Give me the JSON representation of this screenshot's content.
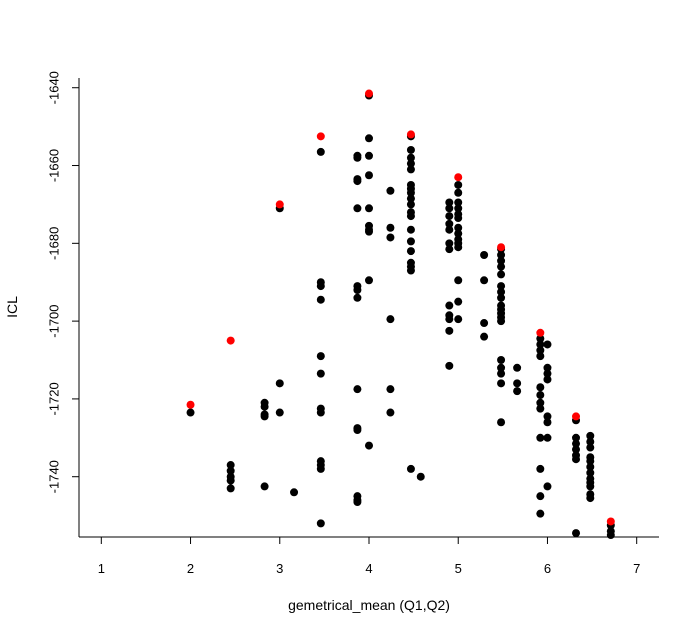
{
  "chart_data": {
    "type": "scatter",
    "title": "",
    "xlabel": "gemetrical_mean (Q1,Q2)",
    "ylabel": "ICL",
    "xlim": [
      0.75,
      7.25
    ],
    "ylim": [
      -1755.5,
      -1637.5
    ],
    "x_ticks": [
      1,
      2,
      3,
      4,
      5,
      6,
      7
    ],
    "y_ticks": [
      -1740,
      -1720,
      -1700,
      -1680,
      -1660,
      -1640
    ],
    "grid": false,
    "series": [
      {
        "color": "#000000",
        "points": [
          [
            2.0,
            -1723.5
          ],
          [
            2.45,
            -1737
          ],
          [
            2.45,
            -1738.5
          ],
          [
            2.45,
            -1740
          ],
          [
            2.45,
            -1741
          ],
          [
            2.45,
            -1743
          ],
          [
            2.83,
            -1721
          ],
          [
            2.83,
            -1722
          ],
          [
            2.83,
            -1724
          ],
          [
            2.83,
            -1724.5
          ],
          [
            2.83,
            -1742.5
          ],
          [
            3.0,
            -1671
          ],
          [
            3.0,
            -1716
          ],
          [
            3.0,
            -1723.5
          ],
          [
            3.16,
            -1744
          ],
          [
            3.46,
            -1656.5
          ],
          [
            3.46,
            -1690
          ],
          [
            3.46,
            -1691
          ],
          [
            3.46,
            -1694.5
          ],
          [
            3.46,
            -1709
          ],
          [
            3.46,
            -1713.5
          ],
          [
            3.46,
            -1722.5
          ],
          [
            3.46,
            -1723.5
          ],
          [
            3.46,
            -1736
          ],
          [
            3.46,
            -1737
          ],
          [
            3.46,
            -1738
          ],
          [
            3.46,
            -1752
          ],
          [
            3.87,
            -1657.5
          ],
          [
            3.87,
            -1658
          ],
          [
            3.87,
            -1663.5
          ],
          [
            3.87,
            -1664
          ],
          [
            3.87,
            -1671
          ],
          [
            3.87,
            -1691
          ],
          [
            3.87,
            -1692
          ],
          [
            3.87,
            -1694
          ],
          [
            3.87,
            -1717.5
          ],
          [
            3.87,
            -1727.5
          ],
          [
            3.87,
            -1728
          ],
          [
            3.87,
            -1745
          ],
          [
            3.87,
            -1746
          ],
          [
            3.87,
            -1746.5
          ],
          [
            4.0,
            -1642
          ],
          [
            4.0,
            -1653
          ],
          [
            4.0,
            -1657.5
          ],
          [
            4.0,
            -1662.5
          ],
          [
            4.0,
            -1671
          ],
          [
            4.0,
            -1675.5
          ],
          [
            4.0,
            -1676.5
          ],
          [
            4.0,
            -1677
          ],
          [
            4.0,
            -1689.5
          ],
          [
            4.0,
            -1732
          ],
          [
            4.24,
            -1666.5
          ],
          [
            4.24,
            -1676
          ],
          [
            4.24,
            -1678.5
          ],
          [
            4.24,
            -1699.5
          ],
          [
            4.24,
            -1717.5
          ],
          [
            4.24,
            -1723.5
          ],
          [
            4.47,
            -1652.5
          ],
          [
            4.47,
            -1656
          ],
          [
            4.47,
            -1658
          ],
          [
            4.47,
            -1659.5
          ],
          [
            4.47,
            -1661
          ],
          [
            4.47,
            -1665
          ],
          [
            4.47,
            -1666
          ],
          [
            4.47,
            -1667
          ],
          [
            4.47,
            -1668.5
          ],
          [
            4.47,
            -1670
          ],
          [
            4.47,
            -1672
          ],
          [
            4.47,
            -1673
          ],
          [
            4.47,
            -1676.5
          ],
          [
            4.47,
            -1679.5
          ],
          [
            4.47,
            -1682
          ],
          [
            4.47,
            -1685
          ],
          [
            4.47,
            -1686
          ],
          [
            4.47,
            -1687
          ],
          [
            4.47,
            -1738
          ],
          [
            4.58,
            -1740
          ],
          [
            4.9,
            -1669.5
          ],
          [
            4.9,
            -1671
          ],
          [
            4.9,
            -1673
          ],
          [
            4.9,
            -1675
          ],
          [
            4.9,
            -1676.5
          ],
          [
            4.9,
            -1680
          ],
          [
            4.9,
            -1681.5
          ],
          [
            4.9,
            -1696
          ],
          [
            4.9,
            -1698.5
          ],
          [
            4.9,
            -1699.5
          ],
          [
            4.9,
            -1702.5
          ],
          [
            4.9,
            -1711.5
          ],
          [
            5.0,
            -1665
          ],
          [
            5.0,
            -1667
          ],
          [
            5.0,
            -1669.5
          ],
          [
            5.0,
            -1671
          ],
          [
            5.0,
            -1672.5
          ],
          [
            5.0,
            -1673.5
          ],
          [
            5.0,
            -1676
          ],
          [
            5.0,
            -1677.5
          ],
          [
            5.0,
            -1679
          ],
          [
            5.0,
            -1680
          ],
          [
            5.0,
            -1681
          ],
          [
            5.0,
            -1689.5
          ],
          [
            5.0,
            -1695
          ],
          [
            5.0,
            -1699.5
          ],
          [
            5.29,
            -1683
          ],
          [
            5.29,
            -1689.5
          ],
          [
            5.29,
            -1700.5
          ],
          [
            5.29,
            -1704
          ],
          [
            5.48,
            -1681.5
          ],
          [
            5.48,
            -1683
          ],
          [
            5.48,
            -1684.5
          ],
          [
            5.48,
            -1686
          ],
          [
            5.48,
            -1688
          ],
          [
            5.48,
            -1691
          ],
          [
            5.48,
            -1692.5
          ],
          [
            5.48,
            -1694
          ],
          [
            5.48,
            -1696
          ],
          [
            5.48,
            -1697
          ],
          [
            5.48,
            -1698
          ],
          [
            5.48,
            -1699
          ],
          [
            5.48,
            -1700
          ],
          [
            5.48,
            -1710
          ],
          [
            5.48,
            -1712
          ],
          [
            5.48,
            -1713.5
          ],
          [
            5.48,
            -1716
          ],
          [
            5.48,
            -1726
          ],
          [
            5.66,
            -1712
          ],
          [
            5.66,
            -1716
          ],
          [
            5.66,
            -1718
          ],
          [
            5.92,
            -1704.5
          ],
          [
            5.92,
            -1706
          ],
          [
            5.92,
            -1707.5
          ],
          [
            5.92,
            -1709
          ],
          [
            5.92,
            -1717
          ],
          [
            5.92,
            -1719
          ],
          [
            5.92,
            -1721
          ],
          [
            5.92,
            -1722.5
          ],
          [
            5.92,
            -1730
          ],
          [
            5.92,
            -1738
          ],
          [
            5.92,
            -1745
          ],
          [
            5.92,
            -1749.5
          ],
          [
            6.0,
            -1706
          ],
          [
            6.0,
            -1712
          ],
          [
            6.0,
            -1713.5
          ],
          [
            6.0,
            -1715
          ],
          [
            6.0,
            -1724.5
          ],
          [
            6.0,
            -1726
          ],
          [
            6.0,
            -1730
          ],
          [
            6.0,
            -1742.5
          ],
          [
            6.32,
            -1725.5
          ],
          [
            6.32,
            -1730
          ],
          [
            6.32,
            -1731.5
          ],
          [
            6.32,
            -1733
          ],
          [
            6.32,
            -1734.5
          ],
          [
            6.32,
            -1735.5
          ],
          [
            6.32,
            -1754.5
          ],
          [
            6.48,
            -1729.5
          ],
          [
            6.48,
            -1731
          ],
          [
            6.48,
            -1732.5
          ],
          [
            6.48,
            -1735
          ],
          [
            6.48,
            -1736
          ],
          [
            6.48,
            -1737.5
          ],
          [
            6.48,
            -1739
          ],
          [
            6.48,
            -1740.5
          ],
          [
            6.48,
            -1741.5
          ],
          [
            6.48,
            -1742.5
          ],
          [
            6.48,
            -1744.5
          ],
          [
            6.48,
            -1745.5
          ],
          [
            6.48,
            -1757
          ],
          [
            6.71,
            -1752.5
          ],
          [
            6.71,
            -1754
          ],
          [
            6.71,
            -1755
          ]
        ]
      },
      {
        "color": "#ff0000",
        "points": [
          [
            2.0,
            -1721.5
          ],
          [
            2.45,
            -1705
          ],
          [
            3.0,
            -1670
          ],
          [
            3.46,
            -1652.5
          ],
          [
            4.0,
            -1641.5
          ],
          [
            4.47,
            -1652
          ],
          [
            5.0,
            -1663
          ],
          [
            5.48,
            -1681
          ],
          [
            5.92,
            -1703
          ],
          [
            6.32,
            -1724.5
          ],
          [
            6.71,
            -1751.5
          ]
        ]
      }
    ]
  }
}
